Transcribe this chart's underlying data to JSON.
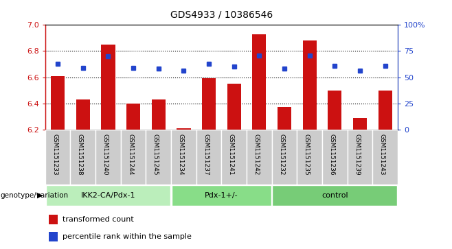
{
  "title": "GDS4933 / 10386546",
  "samples": [
    "GSM1151233",
    "GSM1151238",
    "GSM1151240",
    "GSM1151244",
    "GSM1151245",
    "GSM1151234",
    "GSM1151237",
    "GSM1151241",
    "GSM1151242",
    "GSM1151232",
    "GSM1151235",
    "GSM1151236",
    "GSM1151239",
    "GSM1151243"
  ],
  "bar_values": [
    6.61,
    6.43,
    6.85,
    6.4,
    6.43,
    6.21,
    6.59,
    6.55,
    6.93,
    6.37,
    6.88,
    6.5,
    6.29,
    6.5
  ],
  "percentile_values": [
    63,
    59,
    70,
    59,
    58,
    56,
    63,
    60,
    71,
    58,
    71,
    61,
    56,
    61
  ],
  "groups": [
    {
      "label": "IKK2-CA/Pdx-1",
      "start": 0,
      "end": 5,
      "color": "#bbeebb"
    },
    {
      "label": "Pdx-1+/-",
      "start": 5,
      "end": 9,
      "color": "#88dd88"
    },
    {
      "label": "control",
      "start": 9,
      "end": 14,
      "color": "#77cc77"
    }
  ],
  "ylim_left": [
    6.2,
    7.0
  ],
  "ylim_right": [
    0,
    100
  ],
  "yticks_left": [
    6.2,
    6.4,
    6.6,
    6.8,
    7.0
  ],
  "yticks_right": [
    0,
    25,
    50,
    75,
    100
  ],
  "yticklabels_right": [
    "0",
    "25",
    "50",
    "75",
    "100%"
  ],
  "grid_values": [
    6.4,
    6.6,
    6.8
  ],
  "bar_color": "#cc1111",
  "dot_color": "#2244cc",
  "bar_bottom": 6.2,
  "legend_items": [
    {
      "label": "transformed count",
      "color": "#cc1111"
    },
    {
      "label": "percentile rank within the sample",
      "color": "#2244cc"
    }
  ],
  "group_label_prefix": "genotype/variation",
  "sample_box_color": "#cccccc",
  "sample_box_edge": "#aaaaaa"
}
